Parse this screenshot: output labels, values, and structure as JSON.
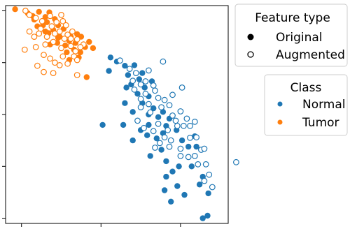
{
  "chart_data": {
    "type": "scatter",
    "title": "",
    "xlabel": "",
    "ylabel": "",
    "xlim": [
      -0.2,
      2.6
    ],
    "ylim": [
      -3.1,
      1.1
    ],
    "x_ticks": [
      0,
      1,
      2
    ],
    "y_ticks": [
      1,
      0,
      -1,
      -2,
      -3
    ],
    "x_tick_labels": [],
    "y_tick_labels": [],
    "grid": false,
    "legends": [
      {
        "title": "Feature type",
        "placement": "upper-right",
        "entries": [
          {
            "label": "Original",
            "marker": "filled-circle",
            "color": "#000000"
          },
          {
            "label": "Augmented",
            "marker": "hollow-circle",
            "color": "#000000"
          }
        ]
      },
      {
        "title": "Class",
        "placement": "right",
        "entries": [
          {
            "label": "Normal",
            "marker": "filled-circle",
            "color": "#1f77b4"
          },
          {
            "label": "Tumor",
            "marker": "filled-circle",
            "color": "#ff7f0e"
          }
        ]
      }
    ],
    "series": [
      {
        "class": "Tumor",
        "feature": "Original",
        "color": "#ff7f0e",
        "filled": true,
        "points": [
          [
            -0.08,
            1.03
          ],
          [
            0.08,
            0.95
          ],
          [
            0.22,
            0.98
          ],
          [
            0.14,
            0.9
          ],
          [
            0.35,
            0.97
          ],
          [
            0.3,
            0.88
          ],
          [
            0.42,
            0.84
          ],
          [
            0.16,
            0.83
          ],
          [
            0.32,
            0.78
          ],
          [
            0.46,
            0.72
          ],
          [
            0.27,
            0.72
          ],
          [
            0.53,
            0.65
          ],
          [
            0.4,
            0.63
          ],
          [
            0.34,
            0.57
          ],
          [
            0.62,
            0.5
          ],
          [
            0.75,
            0.5
          ],
          [
            0.46,
            0.48
          ],
          [
            0.6,
            0.42
          ],
          [
            0.68,
            0.38
          ],
          [
            0.55,
            0.33
          ],
          [
            0.8,
            0.3
          ],
          [
            0.66,
            0.25
          ],
          [
            0.57,
            0.2
          ],
          [
            0.74,
            0.2
          ],
          [
            0.48,
            0.5
          ],
          [
            0.3,
            0.6
          ],
          [
            0.85,
            0.4
          ],
          [
            0.9,
            0.28
          ],
          [
            0.7,
            0.55
          ],
          [
            0.2,
            0.7
          ],
          [
            0.45,
            0.38
          ],
          [
            0.36,
            0.35
          ],
          [
            0.6,
            0.05
          ],
          [
            0.82,
            -0.28
          ],
          [
            0.72,
            0.1
          ]
        ]
      },
      {
        "class": "Tumor",
        "feature": "Augmented",
        "color": "#ff7f0e",
        "filled": false,
        "points": [
          [
            0.05,
            1.0
          ],
          [
            0.1,
            0.92
          ],
          [
            0.18,
            0.86
          ],
          [
            0.26,
            0.8
          ],
          [
            0.36,
            0.9
          ],
          [
            0.44,
            0.78
          ],
          [
            0.5,
            0.92
          ],
          [
            0.24,
            0.65
          ],
          [
            0.38,
            0.7
          ],
          [
            0.52,
            0.8
          ],
          [
            0.56,
            0.72
          ],
          [
            0.42,
            0.56
          ],
          [
            0.32,
            0.5
          ],
          [
            0.22,
            0.56
          ],
          [
            0.48,
            0.6
          ],
          [
            0.64,
            0.6
          ],
          [
            0.58,
            0.54
          ],
          [
            0.4,
            0.4
          ],
          [
            0.3,
            0.35
          ],
          [
            0.5,
            0.28
          ],
          [
            0.18,
            0.3
          ],
          [
            0.62,
            0.32
          ],
          [
            0.7,
            0.45
          ],
          [
            0.78,
            0.35
          ],
          [
            0.68,
            0.22
          ],
          [
            0.74,
            0.3
          ],
          [
            0.1,
            0.6
          ],
          [
            0.16,
            0.5
          ],
          [
            0.04,
            0.25
          ],
          [
            0.52,
            0.12
          ],
          [
            0.66,
            0.12
          ],
          [
            0.7,
            0.05
          ],
          [
            0.58,
            -0.02
          ],
          [
            0.48,
            -0.05
          ],
          [
            0.42,
            0.0
          ],
          [
            0.36,
            0.08
          ],
          [
            0.28,
            0.15
          ],
          [
            0.54,
            0.46
          ],
          [
            0.62,
            0.46
          ],
          [
            0.2,
            -0.06
          ],
          [
            0.28,
            -0.18
          ],
          [
            0.4,
            -0.2
          ],
          [
            0.7,
            -0.24
          ]
        ]
      },
      {
        "class": "Normal",
        "feature": "Original",
        "color": "#1f77b4",
        "filled": true,
        "points": [
          [
            1.12,
            0.1
          ],
          [
            1.2,
            0.02
          ],
          [
            1.3,
            -0.06
          ],
          [
            1.42,
            -0.05
          ],
          [
            1.1,
            -0.16
          ],
          [
            1.34,
            -0.24
          ],
          [
            1.48,
            -0.32
          ],
          [
            1.38,
            -0.42
          ],
          [
            1.55,
            -0.48
          ],
          [
            1.46,
            -0.6
          ],
          [
            1.6,
            -0.65
          ],
          [
            1.52,
            -0.78
          ],
          [
            1.66,
            -0.88
          ],
          [
            1.78,
            -0.95
          ],
          [
            1.72,
            -1.05
          ],
          [
            1.86,
            -1.08
          ],
          [
            1.82,
            -1.22
          ],
          [
            1.95,
            -1.3
          ],
          [
            1.6,
            -1.2
          ],
          [
            1.5,
            -1.3
          ],
          [
            1.4,
            -0.95
          ],
          [
            1.4,
            -1.5
          ],
          [
            1.58,
            -1.4
          ],
          [
            1.7,
            -1.46
          ],
          [
            1.78,
            -1.36
          ],
          [
            1.02,
            -1.2
          ],
          [
            1.28,
            -1.2
          ],
          [
            1.76,
            -1.68
          ],
          [
            2.02,
            -1.5
          ],
          [
            2.1,
            -1.62
          ],
          [
            2.18,
            -1.42
          ],
          [
            1.6,
            -1.0
          ],
          [
            1.52,
            -0.2
          ],
          [
            1.64,
            -0.36
          ],
          [
            1.3,
            -0.78
          ],
          [
            1.62,
            -1.8
          ],
          [
            2.2,
            -1.62
          ],
          [
            1.82,
            -1.9
          ],
          [
            1.98,
            -2.0
          ],
          [
            1.82,
            -2.2
          ],
          [
            1.9,
            -2.1
          ],
          [
            2.14,
            -2.0
          ],
          [
            2.28,
            -2.2
          ],
          [
            1.8,
            -2.46
          ],
          [
            1.96,
            -2.38
          ],
          [
            2.05,
            -2.55
          ],
          [
            1.88,
            -2.68
          ],
          [
            2.35,
            -2.52
          ],
          [
            2.24,
            -2.35
          ],
          [
            2.28,
            -3.0
          ],
          [
            2.34,
            -2.95
          ],
          [
            1.32,
            -0.48
          ]
        ]
      },
      {
        "class": "Normal",
        "feature": "Augmented",
        "color": "#1f77b4",
        "filled": false,
        "points": [
          [
            1.24,
            0.04
          ],
          [
            1.36,
            -0.12
          ],
          [
            1.44,
            -0.2
          ],
          [
            1.6,
            -0.15
          ],
          [
            1.78,
            0.02
          ],
          [
            1.56,
            -0.36
          ],
          [
            1.66,
            -0.44
          ],
          [
            1.5,
            -0.42
          ],
          [
            1.42,
            -0.52
          ],
          [
            1.56,
            -0.6
          ],
          [
            1.68,
            -0.54
          ],
          [
            1.72,
            -0.68
          ],
          [
            1.6,
            -0.8
          ],
          [
            1.5,
            -0.86
          ],
          [
            1.8,
            -0.72
          ],
          [
            1.9,
            -0.62
          ],
          [
            2.02,
            -0.48
          ],
          [
            1.86,
            -0.82
          ],
          [
            2.0,
            -0.94
          ],
          [
            1.94,
            -1.12
          ],
          [
            1.9,
            -1.02
          ],
          [
            2.08,
            -1.08
          ],
          [
            2.12,
            -1.22
          ],
          [
            2.18,
            -1.14
          ],
          [
            2.04,
            -1.22
          ],
          [
            1.96,
            -1.22
          ],
          [
            1.72,
            -1.18
          ],
          [
            1.66,
            -1.32
          ],
          [
            1.54,
            -1.26
          ],
          [
            1.46,
            -1.12
          ],
          [
            1.8,
            -1.44
          ],
          [
            1.88,
            -1.5
          ],
          [
            1.74,
            -1.55
          ],
          [
            2.0,
            -1.66
          ],
          [
            2.18,
            -1.8
          ],
          [
            2.26,
            -1.68
          ],
          [
            2.1,
            -1.82
          ],
          [
            2.32,
            -1.96
          ],
          [
            2.22,
            -1.96
          ],
          [
            2.36,
            -2.16
          ],
          [
            2.3,
            -2.28
          ],
          [
            2.4,
            -2.4
          ],
          [
            2.7,
            -1.92
          ],
          [
            2.2,
            -1.44
          ],
          [
            1.86,
            -1.62
          ],
          [
            1.68,
            -1.64
          ],
          [
            2.0,
            -1.8
          ],
          [
            2.3,
            -1.66
          ],
          [
            1.4,
            -0.35
          ],
          [
            1.5,
            -0.7
          ],
          [
            1.62,
            -0.96
          ],
          [
            1.76,
            -0.86
          ],
          [
            1.84,
            -1.3
          ],
          [
            2.12,
            -1.45
          ]
        ]
      }
    ]
  }
}
